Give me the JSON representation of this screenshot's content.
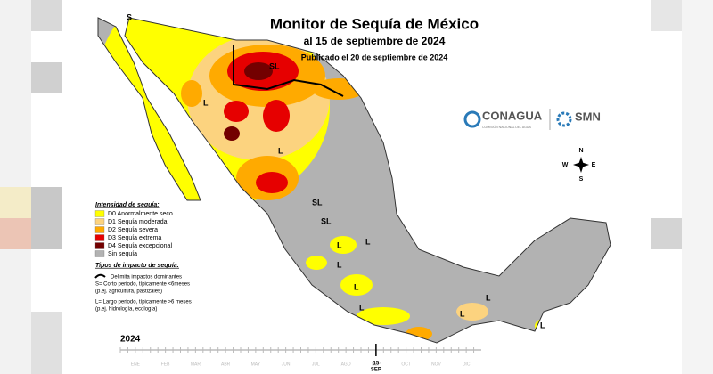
{
  "header": {
    "title": "Monitor de Sequía de México",
    "date": "al 15 de septiembre de 2024",
    "published": "Publicado el 20 de septiembre de 2024"
  },
  "logos": {
    "conagua": "CONAGUA",
    "conagua_sub": "COMISIÓN NACIONAL DEL AGUA",
    "smn": "SMN"
  },
  "compass": [
    "N",
    "S",
    "E",
    "W"
  ],
  "map_labels": [
    "S",
    "SL",
    "L",
    "L",
    "SL",
    "SL",
    "L",
    "L",
    "L",
    "L",
    "L",
    "L",
    "L",
    "L"
  ],
  "legend": {
    "title": "Intensidad de sequía:",
    "items": [
      {
        "label": "D0 Anormalmente seco",
        "color": "#ffff00"
      },
      {
        "label": "D1 Sequía moderada",
        "color": "#fcd37f"
      },
      {
        "label": "D2 Sequía severa",
        "color": "#ffaa00"
      },
      {
        "label": "D3 Sequía extrema",
        "color": "#e60000"
      },
      {
        "label": "D4 Sequía excepcional",
        "color": "#730000"
      },
      {
        "label": "Sin sequía",
        "color": "#b2b2b2"
      }
    ],
    "impact_title": "Tipos de impacto de sequía:",
    "impact_lines": [
      "Delimita impactos dominantes",
      "S= Corto periodo, típicamente <6meses",
      "(p.ej. agricultura, pastizales)",
      "L= Largo periodo, típicamente >6 meses",
      "(p.ej. hidrología, ecología)"
    ]
  },
  "timeline": {
    "year": "2024",
    "day": "15",
    "month": "SEP",
    "months": [
      "ENE",
      "FEB",
      "MAR",
      "ABR",
      "MAY",
      "JUN",
      "JUL",
      "AGO",
      "SEP",
      "OCT",
      "NOV",
      "DIC"
    ]
  }
}
